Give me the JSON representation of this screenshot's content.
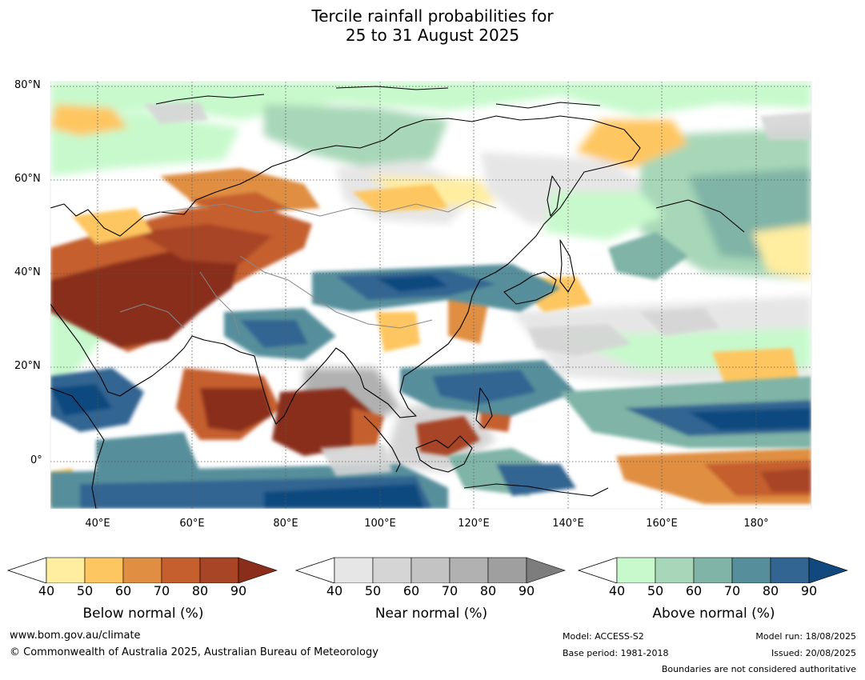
{
  "title": {
    "line1": "Tercile rainfall probabilities for",
    "line2": "25 to 31 August 2025"
  },
  "map": {
    "lat_labels": [
      "80°N",
      "60°N",
      "40°N",
      "20°N",
      "0°"
    ],
    "lon_labels": [
      "40°E",
      "60°E",
      "80°E",
      "100°E",
      "120°E",
      "140°E",
      "160°E",
      "180°"
    ],
    "extent": {
      "lon": [
        30,
        192
      ],
      "lat": [
        -10,
        81
      ]
    }
  },
  "legends": [
    {
      "caption": "Below normal (%)",
      "ticks": [
        "40",
        "50",
        "60",
        "70",
        "80",
        "90"
      ],
      "colors": [
        "#ffeda0",
        "#fec661",
        "#e08f42",
        "#c55f2e",
        "#a84526",
        "#8a2e1b"
      ]
    },
    {
      "caption": "Near normal (%)",
      "ticks": [
        "40",
        "50",
        "60",
        "70",
        "80",
        "90"
      ],
      "colors": [
        "#e6e6e6",
        "#d5d5d5",
        "#c3c3c3",
        "#b1b1b1",
        "#9f9f9f",
        "#7d7d7d"
      ]
    },
    {
      "caption": "Above normal (%)",
      "ticks": [
        "40",
        "50",
        "60",
        "70",
        "80",
        "90"
      ],
      "colors": [
        "#c7f9cc",
        "#a7d7b8",
        "#7fb4a6",
        "#568f9b",
        "#336592",
        "#11497f"
      ]
    }
  ],
  "footer": {
    "url": "www.bom.gov.au/climate",
    "copyright": "© Commonwealth of Australia 2025, Australian Bureau of Meteorology",
    "model": "Model: ACCESS-S2",
    "base_period": "Base period: 1981-2018",
    "model_run": "Model run: 18/08/2025",
    "issued": "Issued: 20/08/2025",
    "disclaimer": "Boundaries are not considered authoritative"
  }
}
